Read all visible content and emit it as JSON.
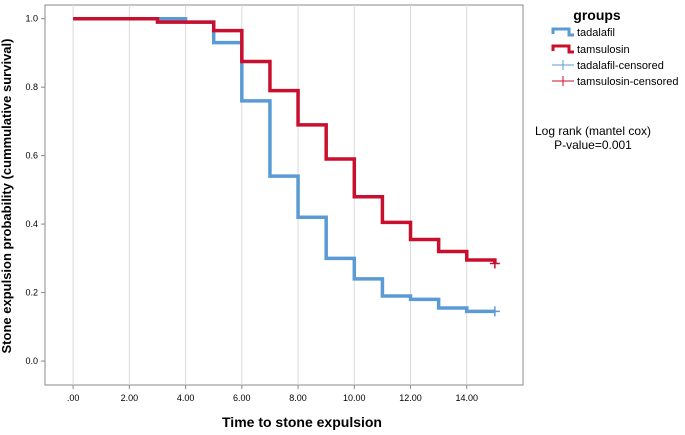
{
  "chart_data": {
    "type": "line",
    "step": true,
    "xlabel": "Time to stone expulsion",
    "ylabel": "Stone expulsion probability (cummulative survival)",
    "xlim": [
      -1,
      16
    ],
    "ylim": [
      -0.07,
      1.04
    ],
    "x_ticks": [
      0,
      2,
      4,
      6,
      8,
      10,
      12,
      14
    ],
    "x_tick_labels": [
      ".00",
      "2.00",
      "4.00",
      "6.00",
      "8.00",
      "10.00",
      "12.00",
      "14.00"
    ],
    "y_ticks": [
      0,
      0.2,
      0.4,
      0.6,
      0.8,
      1.0
    ],
    "y_tick_labels": [
      "0.0",
      "0.2",
      "0.4",
      "0.6",
      "0.8",
      "1.0"
    ],
    "grid": "vertical",
    "legend": {
      "title": "groups",
      "position": "top-right",
      "entries": [
        "tadalafil",
        "tamsulosin",
        "tadalafil-censored",
        "tamsulosin-censored"
      ]
    },
    "annotation": [
      "Log rank (mantel cox)",
      "P-value=0.001"
    ],
    "series": [
      {
        "name": "tadalafil",
        "color": "#5b9bd5",
        "x": [
          0,
          4,
          5,
          6,
          7,
          8,
          9,
          10,
          11,
          12,
          13,
          14,
          15
        ],
        "y": [
          1.0,
          0.99,
          0.93,
          0.76,
          0.54,
          0.42,
          0.3,
          0.24,
          0.19,
          0.18,
          0.155,
          0.145,
          0.145
        ],
        "censored": [
          [
            15,
            0.145
          ]
        ]
      },
      {
        "name": "tamsulosin",
        "color": "#c8102e",
        "x": [
          0,
          3,
          5,
          6,
          7,
          8,
          9,
          10,
          11,
          12,
          13,
          14,
          15
        ],
        "y": [
          1.0,
          0.99,
          0.965,
          0.875,
          0.79,
          0.69,
          0.59,
          0.48,
          0.405,
          0.355,
          0.32,
          0.295,
          0.285
        ],
        "censored": [
          [
            15,
            0.285
          ]
        ]
      }
    ]
  }
}
